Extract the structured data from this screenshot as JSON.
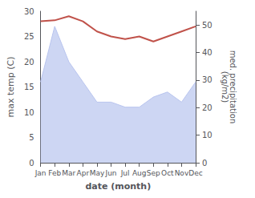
{
  "chart_data": {
    "type": "line",
    "categories": [
      "Jan",
      "Feb",
      "Mar",
      "Apr",
      "May",
      "Jun",
      "Jul",
      "Aug",
      "Sep",
      "Oct",
      "Nov",
      "Dec"
    ],
    "series": [
      {
        "type": "area",
        "color": "#b8c4ee",
        "values": [
          16,
          27,
          20,
          16,
          12,
          12,
          11,
          11,
          13,
          14,
          12,
          16
        ]
      },
      {
        "type": "line",
        "color": "#c0524a",
        "values": [
          28.0,
          28.2,
          29.0,
          28.0,
          26.0,
          25.0,
          24.5,
          25.0,
          24.0,
          25.0,
          26.0,
          27.0
        ]
      }
    ],
    "xlabel": "date (month)",
    "ylabel": "max temp (C)",
    "y2label": "med. precipitation\n(kg/m2)",
    "ylim": [
      0,
      30
    ],
    "yticks": [
      0,
      5,
      10,
      15,
      20,
      25,
      30
    ],
    "y2lim": [
      0,
      55
    ],
    "y2ticks": [
      0,
      10,
      20,
      30,
      40,
      50
    ],
    "grid": false
  }
}
